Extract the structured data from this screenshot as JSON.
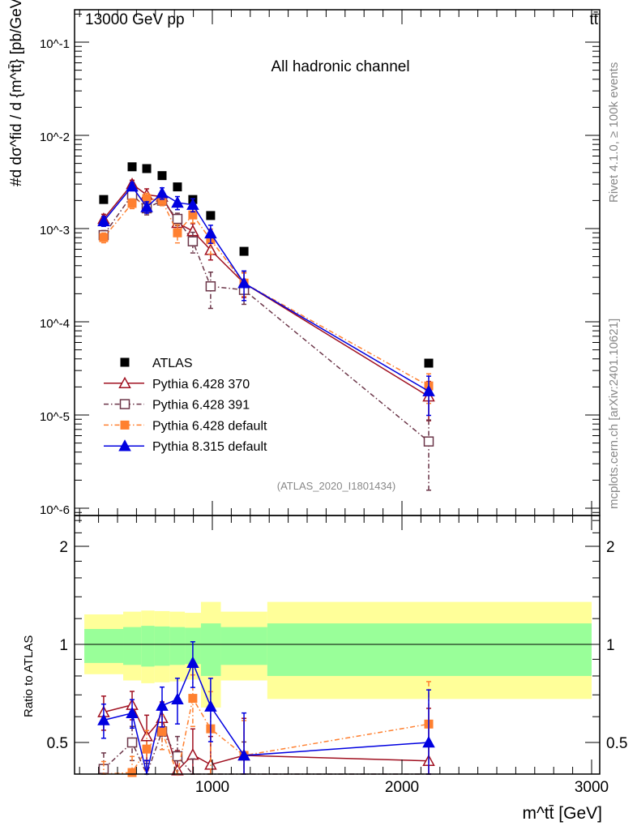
{
  "header": {
    "left": "13000 GeV pp",
    "right": "tt̄"
  },
  "side": {
    "rivet": "Rivet 4.1.0, ≥ 100k events",
    "mcplots": "mcplots.cern.ch [arXiv:2401.10621]"
  },
  "chart_data": [
    {
      "type": "scatter",
      "title": "All hadronic channel",
      "analysis": "(ATLAS_2020_I1801434)",
      "xlabel": "m^tt̄ [GeV]",
      "ylabel": "#d dσ^fid / d {m^tt̄} [pb/GeV]",
      "yscale": "log",
      "xlim": [
        275,
        3040
      ],
      "ylim": [
        8e-07,
        0.13
      ],
      "ytick_labels": [
        "10^-6",
        "10^-5",
        "10^-4",
        "10^-3",
        "10^-2",
        "10^-1"
      ],
      "legend_position": "lower-left",
      "x": [
        427,
        577,
        654,
        735,
        816,
        897,
        991,
        1167,
        2141
      ],
      "bin_edges": [
        325,
        530,
        625,
        695,
        775,
        855,
        940,
        1045,
        1290,
        3000
      ],
      "series": [
        {
          "name": "ATLAS",
          "color": "#000000",
          "marker": "square-filled",
          "line": "none",
          "values": [
            0.00205,
            0.0046,
            0.0044,
            0.0037,
            0.0028,
            0.00205,
            0.00138,
            0.00057,
            3.6e-05
          ]
        },
        {
          "name": "Pythia 6.428 370",
          "color": "#a01020",
          "marker": "triangle-open",
          "line": "solid",
          "values": [
            0.00127,
            0.003,
            0.0023,
            0.0022,
            0.00115,
            0.00094,
            0.00059,
            0.00026,
            1.58e-05
          ],
          "rel_err": [
            0.12,
            0.1,
            0.16,
            0.12,
            0.15,
            0.2,
            0.22,
            0.3,
            0.45
          ]
        },
        {
          "name": "Pythia 6.428 391",
          "color": "#6b3548",
          "marker": "square-open",
          "line": "dashdot",
          "values": [
            0.00085,
            0.0023,
            0.00165,
            0.002,
            0.00127,
            0.00073,
            0.00024,
            0.00022,
            5.2e-06
          ],
          "rel_err": [
            0.12,
            0.12,
            0.15,
            0.12,
            0.15,
            0.25,
            0.42,
            0.3,
            0.7
          ]
        },
        {
          "name": "Pythia 6.428 default",
          "color": "#ff8030",
          "marker": "square-filled",
          "line": "dashdot",
          "values": [
            0.0008,
            0.00186,
            0.0021,
            0.002,
            0.0009,
            0.0014,
            0.00076,
            0.00026,
            2.05e-05
          ],
          "rel_err": [
            0.12,
            0.12,
            0.14,
            0.12,
            0.22,
            0.18,
            0.3,
            0.28,
            0.35
          ]
        },
        {
          "name": "Pythia 8.315 default",
          "color": "#0000e0",
          "marker": "triangle-filled",
          "line": "solid",
          "values": [
            0.0012,
            0.00283,
            0.0017,
            0.0024,
            0.0019,
            0.0018,
            0.00089,
            0.00026,
            1.8e-05
          ],
          "rel_err": [
            0.12,
            0.1,
            0.14,
            0.14,
            0.16,
            0.16,
            0.22,
            0.35,
            0.45
          ]
        }
      ]
    },
    {
      "type": "scatter",
      "ylabel": "Ratio to ATLAS",
      "yscale": "log",
      "ylim": [
        0.4,
        2.49
      ],
      "ytick_labels": [
        "0.5",
        "1",
        "2"
      ],
      "xtick_labels": [
        "1000",
        "2000",
        "3000"
      ],
      "band_inner": {
        "color": "#99ff99",
        "hi": [
          1.115,
          1.13,
          1.14,
          1.135,
          1.13,
          1.125,
          1.16,
          1.13,
          1.16
        ],
        "lo": [
          0.877,
          0.865,
          0.855,
          0.86,
          0.865,
          0.87,
          0.8,
          0.865,
          0.8
        ]
      },
      "band_outer": {
        "color": "#ffff99",
        "hi": [
          1.236,
          1.26,
          1.27,
          1.265,
          1.26,
          1.25,
          1.35,
          1.26,
          1.35
        ],
        "lo": [
          0.81,
          0.775,
          0.76,
          0.765,
          0.77,
          0.78,
          0.64,
          0.775,
          0.68
        ]
      }
    }
  ]
}
